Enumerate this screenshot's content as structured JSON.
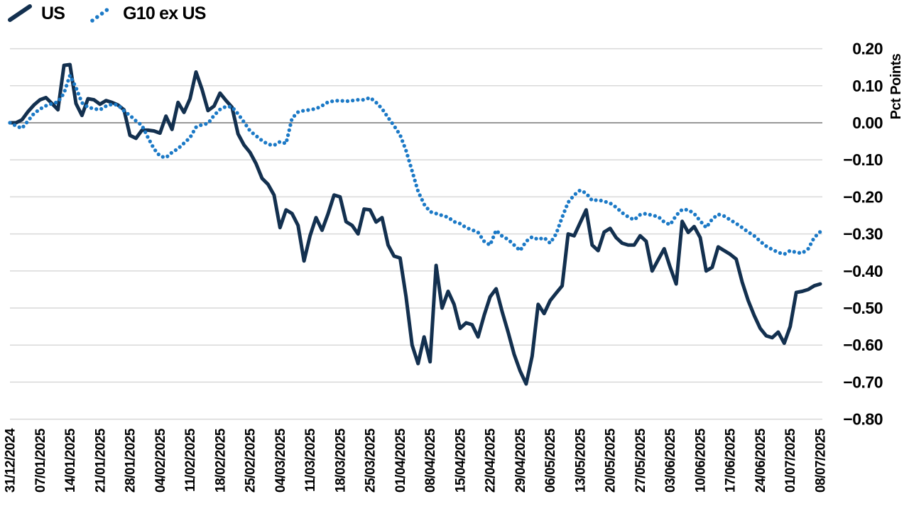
{
  "legend": {
    "items": [
      {
        "label": "US",
        "color": "#13304f",
        "style": "solid"
      },
      {
        "label": "G10 ex US",
        "color": "#1b79c6",
        "style": "dotted"
      }
    ]
  },
  "y_axis": {
    "title": "Pct Points",
    "ticks": [
      "0.20",
      "0.10",
      "0.00",
      "−0.10",
      "−0.20",
      "−0.30",
      "−0.40",
      "−0.50",
      "−0.60",
      "−0.70",
      "−0.80"
    ]
  },
  "x_axis": {
    "ticks": [
      "31/12/2024",
      "07/01/2025",
      "14/01/2025",
      "21/01/2025",
      "28/01/2025",
      "04/02/2025",
      "11/02/2025",
      "18/02/2025",
      "25/02/2025",
      "04/03/2025",
      "11/03/2025",
      "18/03/2025",
      "25/03/2025",
      "01/04/2025",
      "08/04/2025",
      "15/04/2025",
      "22/04/2025",
      "29/04/2025",
      "06/05/2025",
      "13/05/2025",
      "20/05/2025",
      "27/05/2025",
      "03/06/2025",
      "10/06/2025",
      "17/06/2025",
      "24/06/2025",
      "01/07/2025",
      "08/07/2025"
    ]
  },
  "chart_data": {
    "type": "line",
    "title": "",
    "ylabel": "Pct Points",
    "ylim": [
      -0.8,
      0.2
    ],
    "grid": true,
    "legend_position": "top-left",
    "x_frequency": "business-daily",
    "x_start": "31/12/2024",
    "x_end": "08/07/2025",
    "x_tick_labels": [
      "31/12/2024",
      "07/01/2025",
      "14/01/2025",
      "21/01/2025",
      "28/01/2025",
      "04/02/2025",
      "11/02/2025",
      "18/02/2025",
      "25/02/2025",
      "04/03/2025",
      "11/03/2025",
      "18/03/2025",
      "25/03/2025",
      "01/04/2025",
      "08/04/2025",
      "15/04/2025",
      "22/04/2025",
      "29/04/2025",
      "06/05/2025",
      "13/05/2025",
      "20/05/2025",
      "27/05/2025",
      "03/06/2025",
      "10/06/2025",
      "17/06/2025",
      "24/06/2025",
      "01/07/2025",
      "08/07/2025"
    ],
    "y_ticks": [
      "0.20",
      "0.10",
      "0.00",
      "−0.10",
      "−0.20",
      "−0.30",
      "−0.40",
      "−0.50",
      "−0.60",
      "−0.70",
      "−0.80"
    ],
    "colors": {
      "gridline": "#d9d9d9",
      "zero_line": "#777777",
      "text": "#000000",
      "background": "#ffffff"
    },
    "series": [
      {
        "name": "US",
        "style": "solid",
        "color": "#13304f",
        "values": [
          0,
          0,
          0.008,
          0.03,
          0.048,
          0.062,
          0.068,
          0.052,
          0.035,
          0.155,
          0.157,
          0.052,
          0.02,
          0.065,
          0.062,
          0.05,
          0.06,
          0.055,
          0.048,
          0.035,
          -0.034,
          -0.042,
          -0.02,
          -0.02,
          -0.022,
          -0.028,
          0.018,
          -0.018,
          0.055,
          0.028,
          0.065,
          0.137,
          0.09,
          0.033,
          0.045,
          0.08,
          0.06,
          0.042,
          -0.03,
          -0.06,
          -0.08,
          -0.11,
          -0.15,
          -0.166,
          -0.195,
          -0.283,
          -0.235,
          -0.245,
          -0.277,
          -0.373,
          -0.305,
          -0.256,
          -0.29,
          -0.246,
          -0.195,
          -0.2,
          -0.267,
          -0.277,
          -0.3,
          -0.233,
          -0.235,
          -0.268,
          -0.256,
          -0.33,
          -0.36,
          -0.365,
          -0.47,
          -0.6,
          -0.65,
          -0.578,
          -0.645,
          -0.385,
          -0.5,
          -0.455,
          -0.49,
          -0.555,
          -0.54,
          -0.545,
          -0.578,
          -0.52,
          -0.47,
          -0.448,
          -0.51,
          -0.565,
          -0.625,
          -0.67,
          -0.705,
          -0.63,
          -0.49,
          -0.515,
          -0.48,
          -0.46,
          -0.44,
          -0.3,
          -0.305,
          -0.27,
          -0.235,
          -0.33,
          -0.345,
          -0.295,
          -0.285,
          -0.31,
          -0.325,
          -0.33,
          -0.33,
          -0.305,
          -0.32,
          -0.4,
          -0.37,
          -0.34,
          -0.39,
          -0.435,
          -0.266,
          -0.296,
          -0.28,
          -0.31,
          -0.4,
          -0.39,
          -0.335,
          -0.345,
          -0.355,
          -0.368,
          -0.43,
          -0.48,
          -0.52,
          -0.555,
          -0.575,
          -0.58,
          -0.565,
          -0.595,
          -0.55,
          -0.458,
          -0.455,
          -0.45,
          -0.44,
          -0.435
        ]
      },
      {
        "name": "G10 ex US",
        "style": "dotted",
        "color": "#1b79c6",
        "values": [
          0,
          -0.008,
          -0.015,
          0.005,
          0.025,
          0.037,
          0.046,
          0.052,
          0.056,
          0.08,
          0.128,
          0.095,
          0.054,
          0.042,
          0.038,
          0.035,
          0.045,
          0.05,
          0.048,
          0.032,
          0.02,
          0.005,
          -0.007,
          -0.04,
          -0.07,
          -0.09,
          -0.094,
          -0.08,
          -0.07,
          -0.055,
          -0.04,
          -0.012,
          -0.005,
          -0.002,
          0.02,
          0.036,
          0.044,
          0.043,
          0.024,
          0.002,
          -0.022,
          -0.035,
          -0.048,
          -0.058,
          -0.061,
          -0.051,
          -0.056,
          0.012,
          0.029,
          0.033,
          0.035,
          0.038,
          0.046,
          0.056,
          0.059,
          0.06,
          0.058,
          0.06,
          0.062,
          0.062,
          0.068,
          0.055,
          0.038,
          0.014,
          -0.008,
          -0.033,
          -0.075,
          -0.13,
          -0.185,
          -0.22,
          -0.24,
          -0.245,
          -0.25,
          -0.255,
          -0.267,
          -0.272,
          -0.283,
          -0.289,
          -0.296,
          -0.32,
          -0.33,
          -0.29,
          -0.306,
          -0.315,
          -0.33,
          -0.345,
          -0.32,
          -0.308,
          -0.315,
          -0.31,
          -0.325,
          -0.3,
          -0.255,
          -0.215,
          -0.195,
          -0.182,
          -0.19,
          -0.21,
          -0.208,
          -0.212,
          -0.217,
          -0.228,
          -0.243,
          -0.254,
          -0.262,
          -0.248,
          -0.245,
          -0.25,
          -0.253,
          -0.268,
          -0.275,
          -0.25,
          -0.234,
          -0.235,
          -0.245,
          -0.265,
          -0.283,
          -0.26,
          -0.247,
          -0.252,
          -0.262,
          -0.272,
          -0.283,
          -0.295,
          -0.305,
          -0.32,
          -0.333,
          -0.342,
          -0.35,
          -0.355,
          -0.345,
          -0.35,
          -0.352,
          -0.34,
          -0.31,
          -0.294
        ]
      }
    ]
  }
}
